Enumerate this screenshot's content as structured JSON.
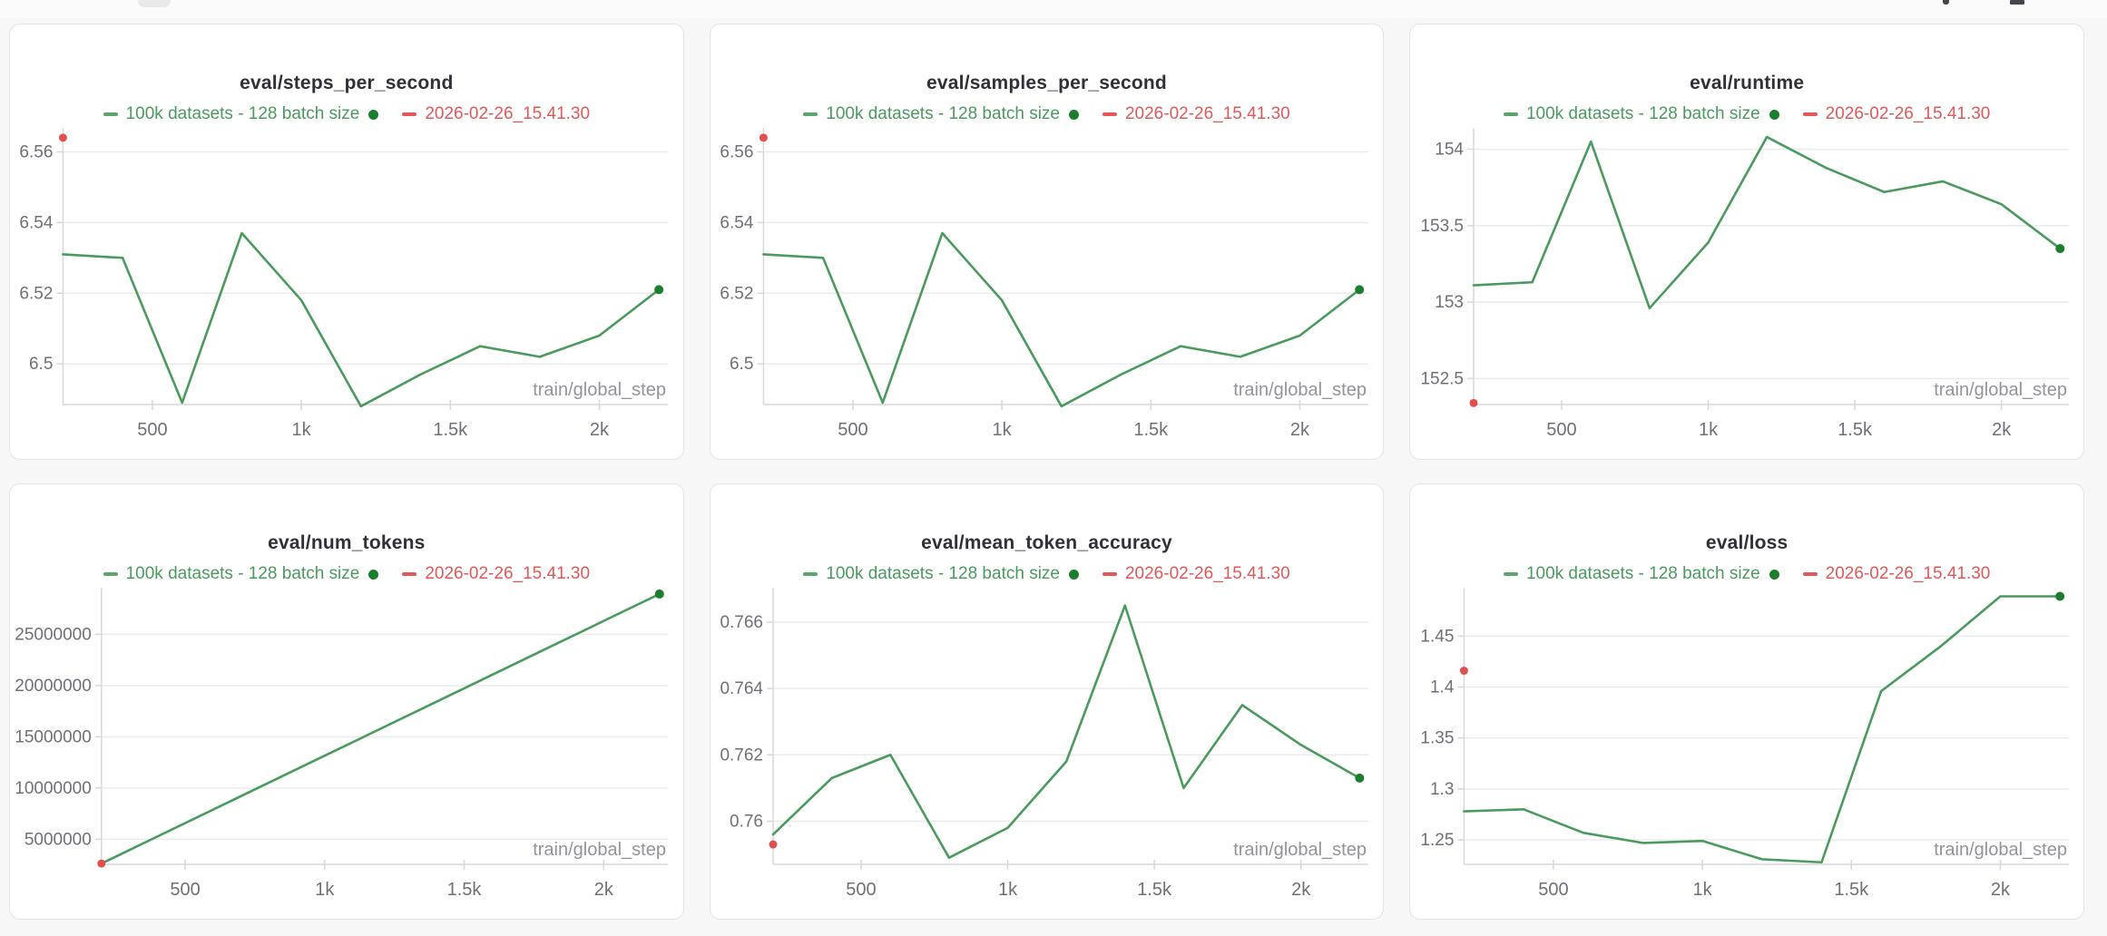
{
  "page": {
    "background_color": "#f7f7f8",
    "card_color": "#ffffff",
    "accent_green": "#4a9a5e",
    "accent_green_dark": "#1b7e2c",
    "accent_red": "#e05252"
  },
  "chart_data": [
    {
      "type": "line",
      "title": "eval/steps_per_second",
      "xlabel": "train/global_step",
      "x": [
        200,
        400,
        600,
        800,
        1000,
        1200,
        1400,
        1600,
        1800,
        2000,
        2200
      ],
      "xlim": [
        200,
        2230
      ],
      "xticks": [
        {
          "value": 500,
          "label": "500"
        },
        {
          "value": 1000,
          "label": "1k"
        },
        {
          "value": 1500,
          "label": "1.5k"
        },
        {
          "value": 2000,
          "label": "2k"
        }
      ],
      "ylim": [
        6.4885,
        6.5655
      ],
      "yticks": [
        {
          "value": 6.5,
          "label": "6.5"
        },
        {
          "value": 6.52,
          "label": "6.52"
        },
        {
          "value": 6.54,
          "label": "6.54"
        },
        {
          "value": 6.56,
          "label": "6.56"
        }
      ],
      "series": [
        {
          "name": "100k datasets - 128 batch size",
          "color": "#4a9a5e",
          "dot_color": "#1b7e2c",
          "values": [
            6.531,
            6.53,
            6.489,
            6.537,
            6.518,
            6.488,
            6.497,
            6.505,
            6.502,
            6.508,
            6.521
          ]
        },
        {
          "name": "2026-02-26_15.41.30",
          "color": "#e14f4f",
          "marker_only": true,
          "x": [
            200
          ],
          "values": [
            6.564
          ]
        }
      ]
    },
    {
      "type": "line",
      "title": "eval/samples_per_second",
      "xlabel": "train/global_step",
      "x": [
        200,
        400,
        600,
        800,
        1000,
        1200,
        1400,
        1600,
        1800,
        2000,
        2200
      ],
      "xlim": [
        200,
        2230
      ],
      "xticks": [
        {
          "value": 500,
          "label": "500"
        },
        {
          "value": 1000,
          "label": "1k"
        },
        {
          "value": 1500,
          "label": "1.5k"
        },
        {
          "value": 2000,
          "label": "2k"
        }
      ],
      "ylim": [
        6.4885,
        6.5655
      ],
      "yticks": [
        {
          "value": 6.5,
          "label": "6.5"
        },
        {
          "value": 6.52,
          "label": "6.52"
        },
        {
          "value": 6.54,
          "label": "6.54"
        },
        {
          "value": 6.56,
          "label": "6.56"
        }
      ],
      "series": [
        {
          "name": "100k datasets - 128 batch size",
          "color": "#4a9a5e",
          "dot_color": "#1b7e2c",
          "values": [
            6.531,
            6.53,
            6.489,
            6.537,
            6.518,
            6.488,
            6.497,
            6.505,
            6.502,
            6.508,
            6.521
          ]
        },
        {
          "name": "2026-02-26_15.41.30",
          "color": "#e14f4f",
          "marker_only": true,
          "x": [
            200
          ],
          "values": [
            6.564
          ]
        }
      ]
    },
    {
      "type": "line",
      "title": "eval/runtime",
      "xlabel": "train/global_step",
      "x": [
        200,
        400,
        600,
        800,
        1000,
        1200,
        1400,
        1600,
        1800,
        2000,
        2200
      ],
      "xlim": [
        200,
        2230
      ],
      "xticks": [
        {
          "value": 500,
          "label": "500"
        },
        {
          "value": 1000,
          "label": "1k"
        },
        {
          "value": 1500,
          "label": "1.5k"
        },
        {
          "value": 2000,
          "label": "2k"
        }
      ],
      "ylim": [
        152.33,
        154.11
      ],
      "yticks": [
        {
          "value": 152.5,
          "label": "152.5"
        },
        {
          "value": 153,
          "label": "153"
        },
        {
          "value": 153.5,
          "label": "153.5"
        },
        {
          "value": 154,
          "label": "154"
        }
      ],
      "series": [
        {
          "name": "100k datasets - 128 batch size",
          "color": "#4a9a5e",
          "dot_color": "#1b7e2c",
          "values": [
            153.11,
            153.13,
            154.05,
            152.96,
            153.39,
            154.08,
            153.88,
            153.72,
            153.79,
            153.64,
            153.35
          ]
        },
        {
          "name": "2026-02-26_15.41.30",
          "color": "#e14f4f",
          "marker_only": true,
          "x": [
            200
          ],
          "values": [
            152.34
          ]
        }
      ]
    },
    {
      "type": "line",
      "title": "eval/num_tokens",
      "xlabel": "train/global_step",
      "x": [
        200,
        400,
        600,
        800,
        1000,
        1200,
        1400,
        1600,
        1800,
        2000,
        2200
      ],
      "xlim": [
        200,
        2230
      ],
      "xticks": [
        {
          "value": 500,
          "label": "500"
        },
        {
          "value": 1000,
          "label": "1k"
        },
        {
          "value": 1500,
          "label": "1.5k"
        },
        {
          "value": 2000,
          "label": "2k"
        }
      ],
      "ylim": [
        2550000,
        29100000
      ],
      "yticks": [
        {
          "value": 5000000,
          "label": "5000000"
        },
        {
          "value": 10000000,
          "label": "10000000"
        },
        {
          "value": 15000000,
          "label": "15000000"
        },
        {
          "value": 20000000,
          "label": "20000000"
        },
        {
          "value": 25000000,
          "label": "25000000"
        }
      ],
      "series": [
        {
          "name": "100k datasets - 128 batch size",
          "color": "#4a9a5e",
          "dot_color": "#1b7e2c",
          "values": [
            2630000,
            5260000,
            7890000,
            10520000,
            13150000,
            15780000,
            18410000,
            21040000,
            23670000,
            26300000,
            28930000
          ]
        },
        {
          "name": "2026-02-26_15.41.30",
          "color": "#e14f4f",
          "marker_only": true,
          "x": [
            200
          ],
          "values": [
            2630000
          ]
        }
      ]
    },
    {
      "type": "line",
      "title": "eval/mean_token_accuracy",
      "xlabel": "train/global_step",
      "x": [
        200,
        400,
        600,
        800,
        1000,
        1200,
        1400,
        1600,
        1800,
        2000,
        2200
      ],
      "xlim": [
        200,
        2230
      ],
      "xticks": [
        {
          "value": 500,
          "label": "500"
        },
        {
          "value": 1000,
          "label": "1k"
        },
        {
          "value": 1500,
          "label": "1.5k"
        },
        {
          "value": 2000,
          "label": "2k"
        }
      ],
      "ylim": [
        0.7587,
        0.7669
      ],
      "yticks": [
        {
          "value": 0.76,
          "label": "0.76"
        },
        {
          "value": 0.762,
          "label": "0.762"
        },
        {
          "value": 0.764,
          "label": "0.764"
        },
        {
          "value": 0.766,
          "label": "0.766"
        }
      ],
      "series": [
        {
          "name": "100k datasets - 128 batch size",
          "color": "#4a9a5e",
          "dot_color": "#1b7e2c",
          "values": [
            0.7596,
            0.7613,
            0.762,
            0.7589,
            0.7598,
            0.7618,
            0.7665,
            0.761,
            0.7635,
            0.7623,
            0.7613
          ]
        },
        {
          "name": "2026-02-26_15.41.30",
          "color": "#e14f4f",
          "marker_only": true,
          "x": [
            200
          ],
          "values": [
            0.7593
          ]
        }
      ]
    },
    {
      "type": "line",
      "title": "eval/loss",
      "xlabel": "train/global_step",
      "x": [
        200,
        400,
        600,
        800,
        1000,
        1200,
        1400,
        1600,
        1800,
        2000,
        2200
      ],
      "xlim": [
        200,
        2230
      ],
      "xticks": [
        {
          "value": 500,
          "label": "500"
        },
        {
          "value": 1000,
          "label": "1k"
        },
        {
          "value": 1500,
          "label": "1.5k"
        },
        {
          "value": 2000,
          "label": "2k"
        }
      ],
      "ylim": [
        1.226,
        1.493
      ],
      "yticks": [
        {
          "value": 1.25,
          "label": "1.25"
        },
        {
          "value": 1.3,
          "label": "1.3"
        },
        {
          "value": 1.35,
          "label": "1.35"
        },
        {
          "value": 1.4,
          "label": "1.4"
        },
        {
          "value": 1.45,
          "label": "1.45"
        }
      ],
      "series": [
        {
          "name": "100k datasets - 128 batch size",
          "color": "#4a9a5e",
          "dot_color": "#1b7e2c",
          "values": [
            1.278,
            1.28,
            1.257,
            1.247,
            1.249,
            1.231,
            1.228,
            1.396,
            1.44,
            1.489,
            1.489
          ]
        },
        {
          "name": "2026-02-26_15.41.30",
          "color": "#e14f4f",
          "marker_only": true,
          "x": [
            200
          ],
          "values": [
            1.416
          ]
        }
      ]
    }
  ],
  "style": {
    "grid_color": "#ebebee",
    "axis_color": "#d7d7dc",
    "tick_text_color": "#6f6f7a",
    "axis_label_color": "#93939d"
  }
}
